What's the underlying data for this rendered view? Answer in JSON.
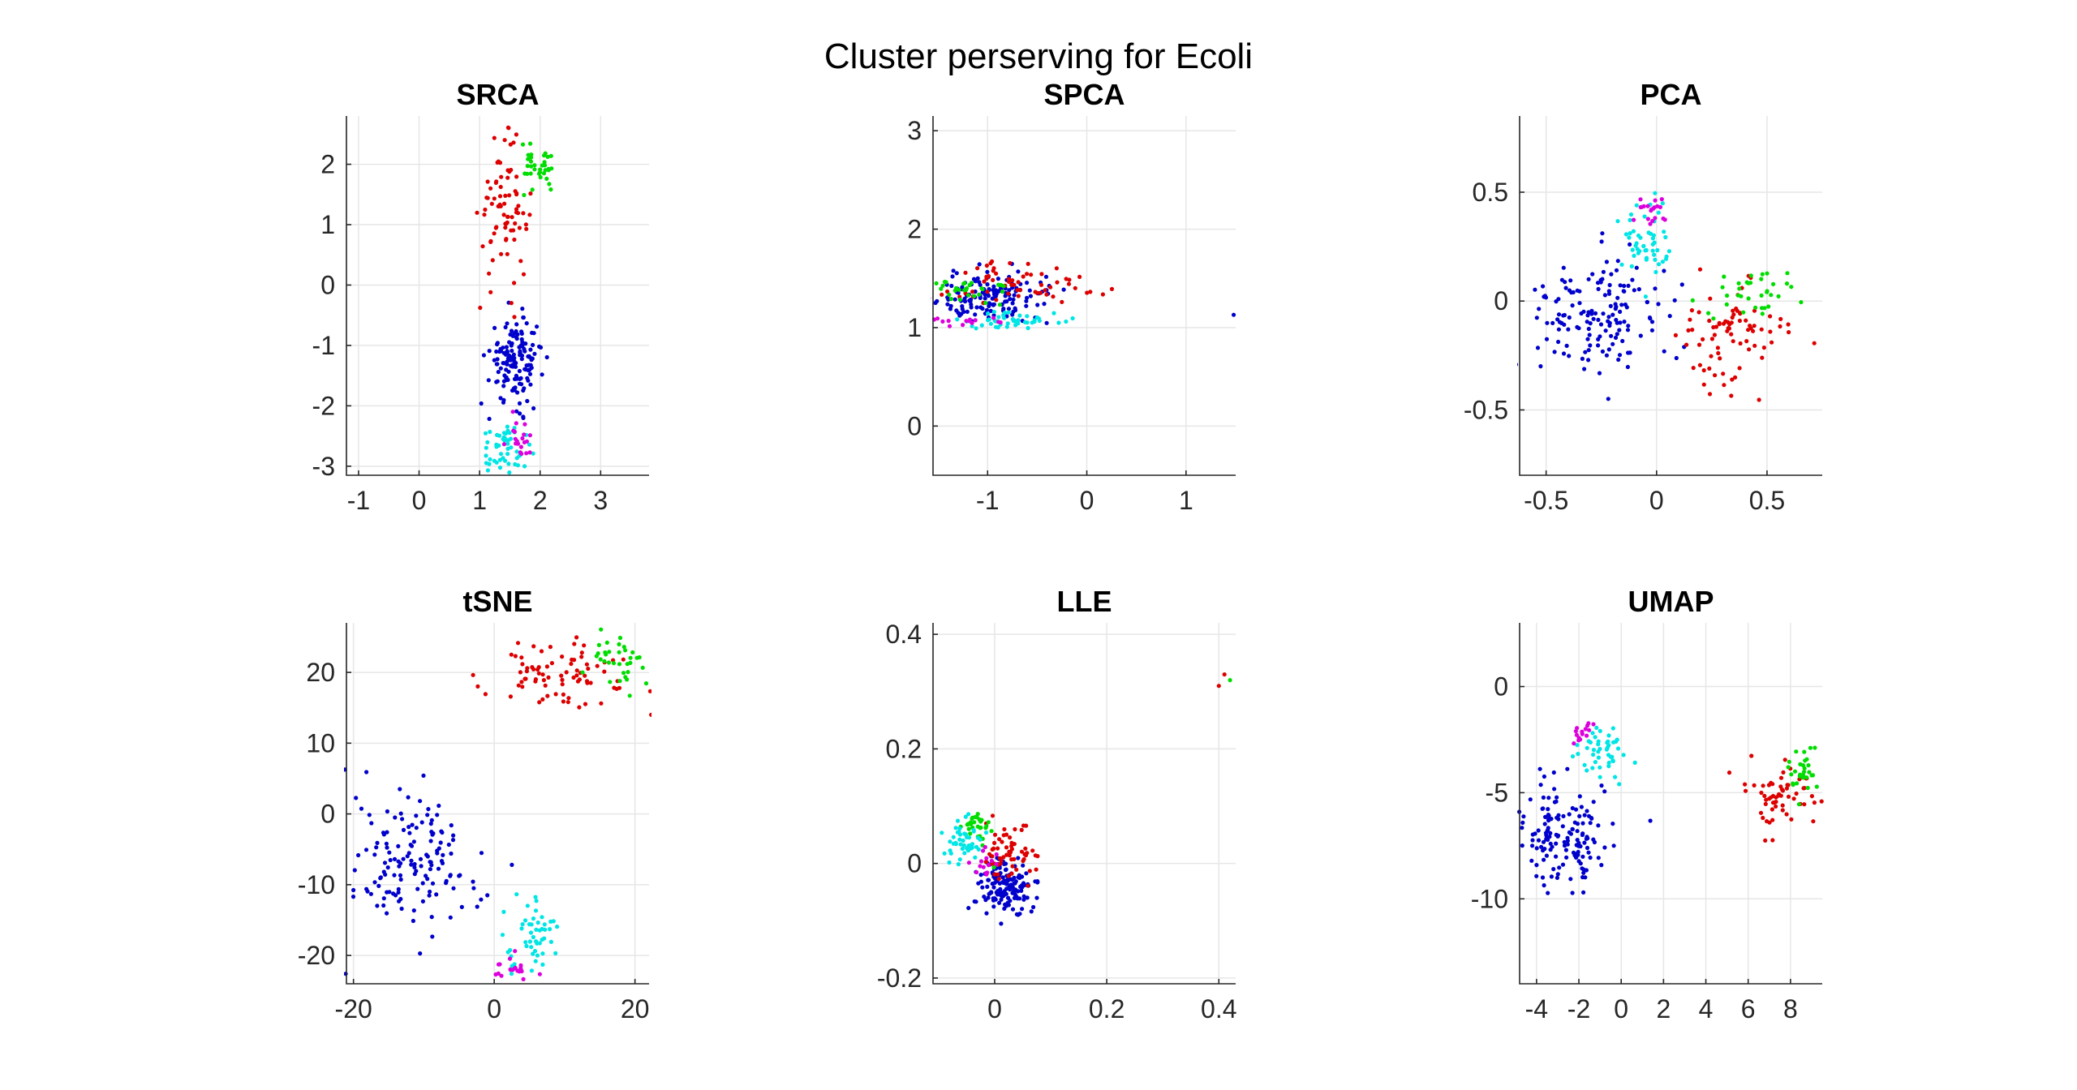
{
  "figure": {
    "title": "Cluster perserving for Ecoli"
  },
  "chart_data": [
    {
      "type": "scatter",
      "title": "SRCA",
      "xlim": [
        -1.2,
        3.8
      ],
      "ylim": [
        -3.15,
        2.8
      ],
      "xticks": [
        -1,
        0,
        1,
        2,
        3
      ],
      "yticks": [
        -3,
        -2,
        -1,
        0,
        1,
        2
      ],
      "grid": true,
      "clusters": [
        {
          "color": "#0000cc",
          "n": 150,
          "cx": 1.6,
          "cy": -1.25,
          "sx": 0.22,
          "sy": 0.35
        },
        {
          "color": "#dd0000",
          "n": 80,
          "cx": 1.4,
          "cy": 1.2,
          "sx": 0.2,
          "sy": 0.55
        },
        {
          "color": "#00dd00",
          "n": 35,
          "cx": 1.95,
          "cy": 1.9,
          "sx": 0.17,
          "sy": 0.2
        },
        {
          "color": "#00e5e5",
          "n": 50,
          "cx": 1.45,
          "cy": -2.7,
          "sx": 0.2,
          "sy": 0.2
        },
        {
          "color": "#dd00dd",
          "n": 20,
          "cx": 1.7,
          "cy": -2.5,
          "sx": 0.2,
          "sy": 0.2
        }
      ]
    },
    {
      "type": "scatter",
      "title": "SPCA",
      "xlim": [
        -1.55,
        1.5
      ],
      "ylim": [
        -0.5,
        3.15
      ],
      "xticks": [
        -1,
        0,
        1
      ],
      "yticks": [
        0,
        1,
        2,
        3
      ],
      "grid": true,
      "clusters": [
        {
          "color": "#0000cc",
          "n": 150,
          "cx": -0.95,
          "cy": 1.3,
          "sx": 0.3,
          "sy": 0.13
        },
        {
          "color": "#dd0000",
          "n": 60,
          "cx": -0.6,
          "cy": 1.45,
          "sx": 0.35,
          "sy": 0.12
        },
        {
          "color": "#00dd00",
          "n": 30,
          "cx": -1.2,
          "cy": 1.4,
          "sx": 0.2,
          "sy": 0.08
        },
        {
          "color": "#00e5e5",
          "n": 45,
          "cx": -0.75,
          "cy": 1.07,
          "sx": 0.25,
          "sy": 0.04
        },
        {
          "color": "#dd00dd",
          "n": 15,
          "cx": -1.2,
          "cy": 1.07,
          "sx": 0.15,
          "sy": 0.03
        }
      ],
      "outliers": [
        {
          "color": "#0000cc",
          "x": 1.48,
          "y": 1.13
        }
      ]
    },
    {
      "type": "scatter",
      "title": "PCA",
      "xlim": [
        -0.62,
        0.75
      ],
      "ylim": [
        -0.8,
        0.85
      ],
      "xticks": [
        -0.5,
        0,
        0.5
      ],
      "yticks": [
        -0.5,
        0,
        0.5
      ],
      "grid": true,
      "clusters": [
        {
          "color": "#0000cc",
          "n": 150,
          "cx": -0.28,
          "cy": -0.08,
          "sx": 0.14,
          "sy": 0.13
        },
        {
          "color": "#dd0000",
          "n": 80,
          "cx": 0.33,
          "cy": -0.15,
          "sx": 0.13,
          "sy": 0.14
        },
        {
          "color": "#00dd00",
          "n": 35,
          "cx": 0.42,
          "cy": 0.02,
          "sx": 0.11,
          "sy": 0.08
        },
        {
          "color": "#00e5e5",
          "n": 50,
          "cx": -0.05,
          "cy": 0.25,
          "sx": 0.06,
          "sy": 0.1
        },
        {
          "color": "#dd00dd",
          "n": 20,
          "cx": -0.02,
          "cy": 0.4,
          "sx": 0.04,
          "sy": 0.05
        }
      ]
    },
    {
      "type": "scatter",
      "title": "tSNE",
      "xlim": [
        -21,
        22
      ],
      "ylim": [
        -24,
        27
      ],
      "xticks": [
        -20,
        0,
        20
      ],
      "yticks": [
        -20,
        -10,
        0,
        10,
        20
      ],
      "grid": true,
      "clusters": [
        {
          "color": "#0000cc",
          "n": 150,
          "cx": -12,
          "cy": -7,
          "sx": 5,
          "sy": 5
        },
        {
          "color": "#dd0000",
          "n": 80,
          "cx": 10,
          "cy": 20,
          "sx": 5,
          "sy": 2.5
        },
        {
          "color": "#00dd00",
          "n": 35,
          "cx": 18,
          "cy": 22,
          "sx": 2.2,
          "sy": 2.4
        },
        {
          "color": "#00e5e5",
          "n": 50,
          "cx": 5,
          "cy": -17,
          "sx": 2.2,
          "sy": 2.5
        },
        {
          "color": "#dd00dd",
          "n": 20,
          "cx": 3,
          "cy": -22,
          "sx": 1.5,
          "sy": 1
        }
      ]
    },
    {
      "type": "scatter",
      "title": "LLE",
      "xlim": [
        -0.11,
        0.43
      ],
      "ylim": [
        -0.21,
        0.42
      ],
      "xticks": [
        0,
        0.2,
        0.4
      ],
      "yticks": [
        -0.2,
        0,
        0.2,
        0.4
      ],
      "grid": true,
      "clusters": [
        {
          "color": "#0000cc",
          "n": 150,
          "cx": 0.02,
          "cy": -0.04,
          "sx": 0.025,
          "sy": 0.025
        },
        {
          "color": "#dd0000",
          "n": 60,
          "cx": 0.03,
          "cy": 0.02,
          "sx": 0.025,
          "sy": 0.025
        },
        {
          "color": "#00dd00",
          "n": 30,
          "cx": -0.03,
          "cy": 0.06,
          "sx": 0.015,
          "sy": 0.015
        },
        {
          "color": "#00e5e5",
          "n": 45,
          "cx": -0.06,
          "cy": 0.04,
          "sx": 0.02,
          "sy": 0.02
        },
        {
          "color": "#dd00dd",
          "n": 15,
          "cx": -0.02,
          "cy": 0.0,
          "sx": 0.015,
          "sy": 0.015
        }
      ],
      "outliers": [
        {
          "color": "#dd0000",
          "x": 0.4,
          "y": 0.31
        },
        {
          "color": "#dd0000",
          "x": 0.41,
          "y": 0.33
        },
        {
          "color": "#00dd00",
          "x": 0.42,
          "y": 0.32
        }
      ]
    },
    {
      "type": "scatter",
      "title": "UMAP",
      "xlim": [
        -4.8,
        9.5
      ],
      "ylim": [
        -14,
        3
      ],
      "xticks": [
        -4,
        -2,
        0,
        2,
        4,
        6,
        8
      ],
      "yticks": [
        -10,
        -5,
        0
      ],
      "grid": true,
      "clusters": [
        {
          "color": "#0000cc",
          "n": 150,
          "cx": -2.8,
          "cy": -7,
          "sx": 1.1,
          "sy": 1.2
        },
        {
          "color": "#dd0000",
          "n": 60,
          "cx": 7.3,
          "cy": -5,
          "sx": 0.9,
          "sy": 0.8
        },
        {
          "color": "#00dd00",
          "n": 30,
          "cx": 8.5,
          "cy": -3.8,
          "sx": 0.5,
          "sy": 0.5
        },
        {
          "color": "#00e5e5",
          "n": 45,
          "cx": -0.8,
          "cy": -3.2,
          "sx": 0.6,
          "sy": 0.6
        },
        {
          "color": "#dd00dd",
          "n": 15,
          "cx": -2.0,
          "cy": -2.2,
          "sx": 0.3,
          "sy": 0.25
        }
      ]
    }
  ]
}
